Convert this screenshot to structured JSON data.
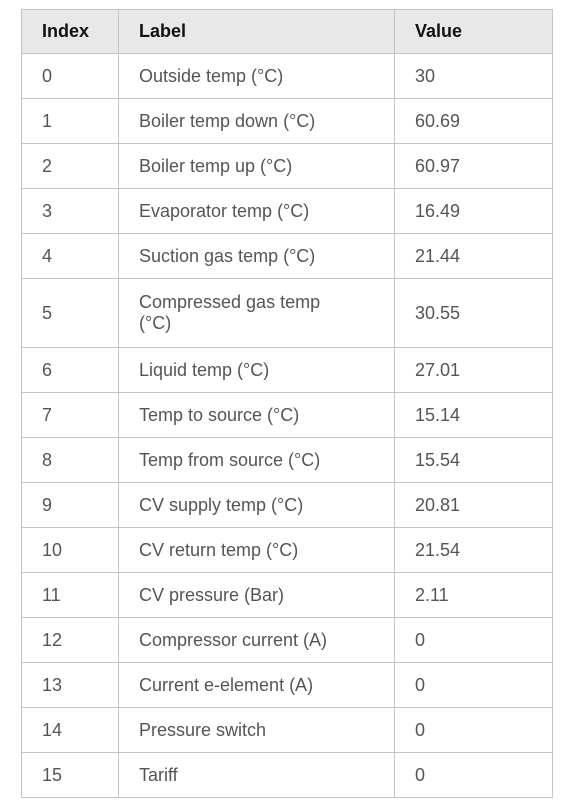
{
  "table": {
    "header": [
      "Index",
      "Label",
      "Value"
    ],
    "rows": [
      [
        "0",
        "Outside temp (°C)",
        "30"
      ],
      [
        "1",
        "Boiler temp down (°C)",
        "60.69"
      ],
      [
        "2",
        "Boiler temp up (°C)",
        "60.97"
      ],
      [
        "3",
        "Evaporator temp (°C)",
        "16.49"
      ],
      [
        "4",
        "Suction gas temp (°C)",
        "21.44"
      ],
      [
        "5",
        "Compressed gas temp (°C)",
        "30.55"
      ],
      [
        "6",
        "Liquid temp (°C)",
        "27.01"
      ],
      [
        "7",
        "Temp to source (°C)",
        "15.14"
      ],
      [
        "8",
        "Temp from source (°C)",
        "15.54"
      ],
      [
        "9",
        "CV supply temp (°C)",
        "20.81"
      ],
      [
        "10",
        "CV return temp (°C)",
        "21.54"
      ],
      [
        "11",
        "CV pressure (Bar)",
        "2.11"
      ],
      [
        "12",
        "Compressor current (A)",
        "0"
      ],
      [
        "13",
        "Current e-element (A)",
        "0"
      ],
      [
        "14",
        "Pressure switch",
        "0"
      ],
      [
        "15",
        "Tariff",
        "0"
      ]
    ]
  }
}
